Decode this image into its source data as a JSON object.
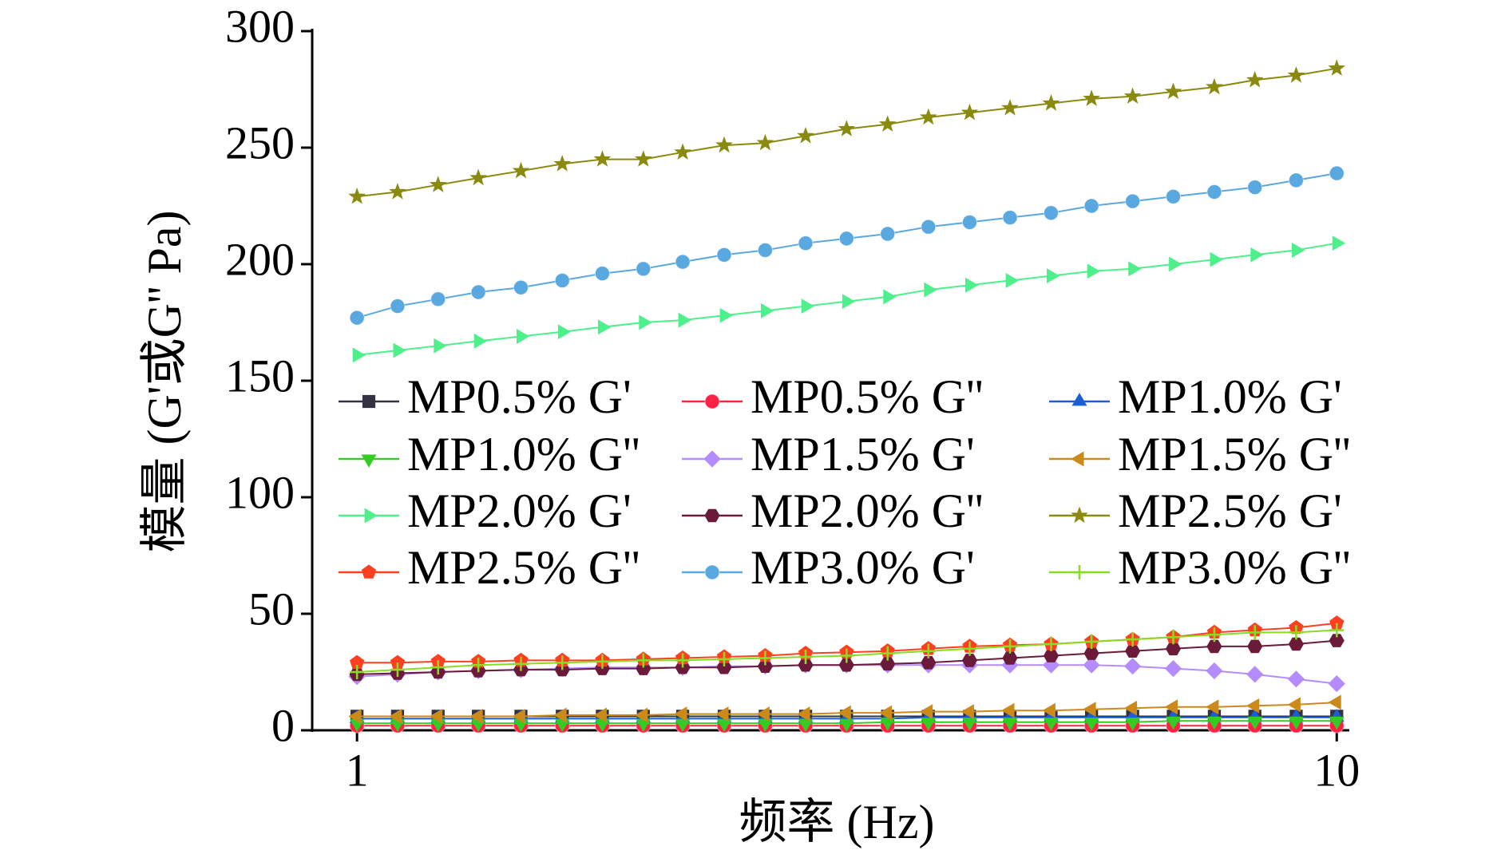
{
  "chart_data": {
    "type": "line",
    "xlabel": "频率 (Hz)",
    "ylabel": "模量 (G'或G'' Pa)",
    "xscale": "log",
    "xlim": [
      0.9,
      10.3
    ],
    "xticks": [
      1,
      10
    ],
    "ylim": [
      0,
      300
    ],
    "yticks": [
      0,
      50,
      100,
      150,
      200,
      250,
      300
    ],
    "legend": "center",
    "x": [
      1,
      1.1,
      1.21,
      1.33,
      1.47,
      1.62,
      1.78,
      1.96,
      2.15,
      2.37,
      2.61,
      2.87,
      3.16,
      3.48,
      3.83,
      4.22,
      4.64,
      5.11,
      5.62,
      6.19,
      6.81,
      7.5,
      8.25,
      9.09,
      10
    ],
    "series": [
      {
        "name": "MP0.5% G'",
        "color": "#333344",
        "marker": "square",
        "values": [
          6,
          6,
          6,
          6,
          6,
          6,
          6,
          6,
          6,
          6,
          6,
          6,
          6,
          6,
          6,
          6,
          6,
          6,
          6,
          6,
          6,
          6,
          6,
          6,
          6
        ]
      },
      {
        "name": "MP0.5% G''",
        "color": "#ff2244",
        "marker": "circle",
        "values": [
          2,
          2,
          2,
          2,
          2,
          2,
          2,
          2,
          2,
          2,
          2,
          2,
          2,
          2,
          2,
          2,
          2,
          2,
          2,
          2,
          2,
          2,
          2,
          2,
          2
        ]
      },
      {
        "name": "MP1.0% G'",
        "color": "#1a5fd8",
        "marker": "triangle-up",
        "values": [
          5,
          5,
          5,
          5,
          5,
          5,
          5,
          5,
          5,
          5,
          5,
          5,
          5,
          5,
          5.5,
          5.5,
          5.5,
          5.5,
          5.5,
          5.5,
          5.5,
          5.5,
          5.5,
          5.5,
          5.5
        ]
      },
      {
        "name": "MP1.0% G''",
        "color": "#33cc22",
        "marker": "triangle-down",
        "values": [
          3,
          3,
          3,
          3,
          3,
          3,
          3,
          3,
          3,
          3,
          3,
          3,
          3,
          3.5,
          3.5,
          3.5,
          3.5,
          3.5,
          3.5,
          3.5,
          4,
          4,
          4,
          4,
          4
        ]
      },
      {
        "name": "MP1.5% G'",
        "color": "#b58cff",
        "marker": "diamond",
        "values": [
          23,
          24,
          25,
          25.5,
          26,
          26.5,
          27,
          27,
          27,
          27.5,
          27.5,
          28,
          28,
          28,
          28,
          28,
          28,
          28,
          28,
          27.5,
          26.5,
          25.5,
          24,
          22,
          20
        ]
      },
      {
        "name": "MP1.5% G''",
        "color": "#cc8a1a",
        "marker": "triangle-left",
        "values": [
          6,
          6,
          6,
          6,
          6,
          6.5,
          6.5,
          6.5,
          7,
          7,
          7,
          7,
          7.5,
          7.5,
          8,
          8,
          8.5,
          8.5,
          9,
          9.5,
          10,
          10,
          10.5,
          11,
          12
        ]
      },
      {
        "name": "MP2.0% G'",
        "color": "#4ef08c",
        "marker": "triangle-right",
        "values": [
          161,
          163,
          165,
          167,
          169,
          171,
          173,
          175,
          176,
          178,
          180,
          182,
          184,
          186,
          189,
          191,
          193,
          195,
          197,
          198,
          200,
          202,
          204,
          206,
          209
        ]
      },
      {
        "name": "MP2.0% G''",
        "color": "#6b1a3a",
        "marker": "hexagon",
        "values": [
          24,
          24.5,
          25,
          25.5,
          26,
          26,
          26.5,
          26.5,
          27,
          27,
          27.5,
          28,
          28,
          28.5,
          29,
          30,
          31,
          32,
          33,
          34,
          35,
          36,
          36,
          37,
          38.5
        ]
      },
      {
        "name": "MP2.5% G'",
        "color": "#8a8a10",
        "marker": "star",
        "values": [
          229,
          231,
          234,
          237,
          240,
          243,
          245,
          245,
          248,
          251,
          252,
          255,
          258,
          260,
          263,
          265,
          267,
          269,
          271,
          272,
          274,
          276,
          279,
          281,
          284
        ]
      },
      {
        "name": "MP2.5% G''",
        "color": "#ff4020",
        "marker": "pentagon",
        "values": [
          29,
          29,
          29.5,
          29.5,
          30,
          30,
          30,
          30.5,
          31,
          31.5,
          32,
          33,
          33.5,
          34,
          35,
          36,
          36.5,
          37,
          38,
          39,
          40,
          42,
          43,
          44,
          46
        ]
      },
      {
        "name": "MP3.0% G'",
        "color": "#5aa8e0",
        "marker": "circle",
        "values": [
          177,
          182,
          185,
          188,
          190,
          193,
          196,
          198,
          201,
          204,
          206,
          209,
          211,
          213,
          216,
          218,
          220,
          222,
          225,
          227,
          229,
          231,
          233,
          236,
          239
        ]
      },
      {
        "name": "MP3.0% G''",
        "color": "#88dd22",
        "marker": "plus",
        "values": [
          25,
          26,
          27,
          28,
          28.5,
          29,
          29.5,
          30,
          30,
          30.5,
          31,
          31.5,
          32,
          33,
          34,
          35,
          36,
          37,
          38,
          39,
          40,
          41,
          42,
          42,
          43
        ]
      }
    ]
  }
}
